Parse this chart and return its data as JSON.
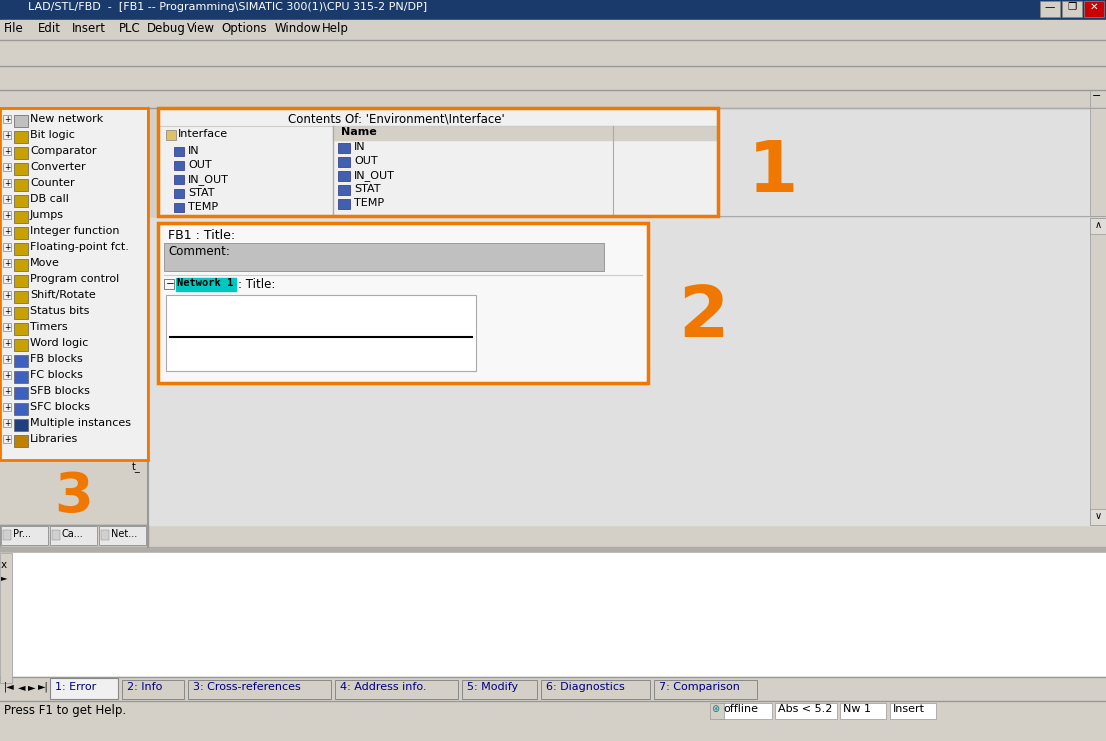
{
  "title_bar": "LAD/STL/FBD  -  [FB1 -- Programming\\SIMATIC 300(1)\\CPU 315-2 PN/DP]",
  "bg_color": "#d4d0c8",
  "win_bg": "#e8e4e0",
  "white": "#ffffff",
  "orange_border": "#f07800",
  "dark_gray": "#808080",
  "light_gray": "#c0c0c0",
  "content_bg": "#e8e8e8",
  "main_bg": "#e8e8e8",
  "sidebar_items": [
    "New network",
    "Bit logic",
    "Comparator",
    "Converter",
    "Counter",
    "DB call",
    "Jumps",
    "Integer function",
    "Floating-point fct.",
    "Move",
    "Program control",
    "Shift/Rotate",
    "Status bits",
    "Timers",
    "Word logic",
    "FB blocks",
    "FC blocks",
    "SFB blocks",
    "SFC blocks",
    "Multiple instances",
    "Libraries"
  ],
  "interface_tree": [
    "Interface",
    "IN",
    "OUT",
    "IN_OUT",
    "STAT",
    "TEMP"
  ],
  "contents_header": "Contents Of: 'Environment\\Interface'",
  "contents_name": "Name",
  "contents_items": [
    "IN",
    "OUT",
    "IN_OUT",
    "STAT",
    "TEMP"
  ],
  "fb1_title": "FB1 : Title:",
  "comment_label": "Comment:",
  "network_label": ": Title:",
  "network_highlight": "Network 1",
  "label1": "1",
  "label2": "2",
  "label3": "3",
  "tabs": [
    "1: Error",
    "2: Info",
    "3: Cross-references",
    "4: Address info.",
    "5: Modify",
    "6: Diagnostics",
    "7: Comparison"
  ],
  "status_bar_left": "Press F1 to get Help.",
  "status_bar_right": [
    "offline",
    "Abs < 5.2",
    "Nw 1",
    "Insert"
  ],
  "menu_items": [
    "File",
    "Edit",
    "Insert",
    "PLC",
    "Debug",
    "View",
    "Options",
    "Window",
    "Help"
  ]
}
